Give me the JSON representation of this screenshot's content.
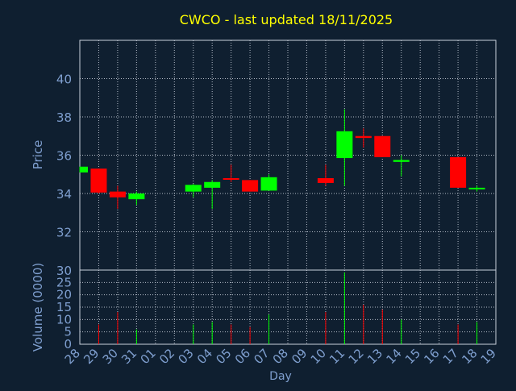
{
  "chart_data": {
    "type": "candlestick",
    "title": "CWCO - last updated 18/11/2025",
    "xlabel": "Day",
    "price_ylabel": "Price",
    "volume_ylabel": "Volume (0000)",
    "price_ylim": [
      30,
      42
    ],
    "price_ticks": [
      "30",
      "32",
      "34",
      "36",
      "38",
      "40"
    ],
    "volume_ylim": [
      0,
      30
    ],
    "volume_ticks": [
      "0",
      "5",
      "10",
      "15",
      "20",
      "25"
    ],
    "x_ticks": [
      "28",
      "29",
      "30",
      "31",
      "01",
      "02",
      "03",
      "04",
      "05",
      "06",
      "07",
      "08",
      "09",
      "10",
      "11",
      "12",
      "13",
      "14",
      "15",
      "16",
      "17",
      "18",
      "19"
    ],
    "grid": true,
    "candles": [
      {
        "day": "28",
        "open": 35.1,
        "high": 35.4,
        "low": 35.1,
        "close": 35.4,
        "volume": 0
      },
      {
        "day": "29",
        "open": 35.3,
        "high": 35.3,
        "low": 34.0,
        "close": 34.05,
        "volume": 8
      },
      {
        "day": "30",
        "open": 34.1,
        "high": 34.4,
        "low": 33.2,
        "close": 33.8,
        "volume": 13
      },
      {
        "day": "31",
        "open": 33.7,
        "high": 34.1,
        "low": 33.4,
        "close": 34.0,
        "volume": 6
      },
      {
        "day": "03",
        "open": 34.1,
        "high": 34.5,
        "low": 33.8,
        "close": 34.45,
        "volume": 8
      },
      {
        "day": "04",
        "open": 34.3,
        "high": 34.7,
        "low": 33.2,
        "close": 34.6,
        "volume": 9
      },
      {
        "day": "05",
        "open": 34.8,
        "high": 35.5,
        "low": 34.6,
        "close": 34.75,
        "volume": 8
      },
      {
        "day": "06",
        "open": 34.7,
        "high": 34.7,
        "low": 34.1,
        "close": 34.1,
        "volume": 7
      },
      {
        "day": "07",
        "open": 34.15,
        "high": 35.0,
        "low": 34.15,
        "close": 34.85,
        "volume": 12
      },
      {
        "day": "10",
        "open": 34.8,
        "high": 35.5,
        "low": 34.4,
        "close": 34.55,
        "volume": 13
      },
      {
        "day": "11",
        "open": 35.85,
        "high": 38.4,
        "low": 34.4,
        "close": 37.25,
        "volume": 29
      },
      {
        "day": "12",
        "open": 37.0,
        "high": 37.4,
        "low": 36.4,
        "close": 36.9,
        "volume": 16
      },
      {
        "day": "13",
        "open": 37.0,
        "high": 37.0,
        "low": 35.9,
        "close": 35.9,
        "volume": 14
      },
      {
        "day": "14",
        "open": 35.65,
        "high": 36.0,
        "low": 34.9,
        "close": 35.75,
        "volume": 10
      },
      {
        "day": "17",
        "open": 35.9,
        "high": 35.9,
        "low": 34.3,
        "close": 34.3,
        "volume": 8
      },
      {
        "day": "18",
        "open": 34.3,
        "high": 34.4,
        "low": 34.1,
        "close": 34.3,
        "volume": 9
      }
    ],
    "colors": {
      "background": "#0f1f30",
      "up": "#00ff00",
      "down": "#ff0000",
      "axis_text": "#7f9fcf",
      "title": "#ffff00",
      "frame": "#c8d0dc",
      "grid": "#b4bcc8"
    }
  }
}
